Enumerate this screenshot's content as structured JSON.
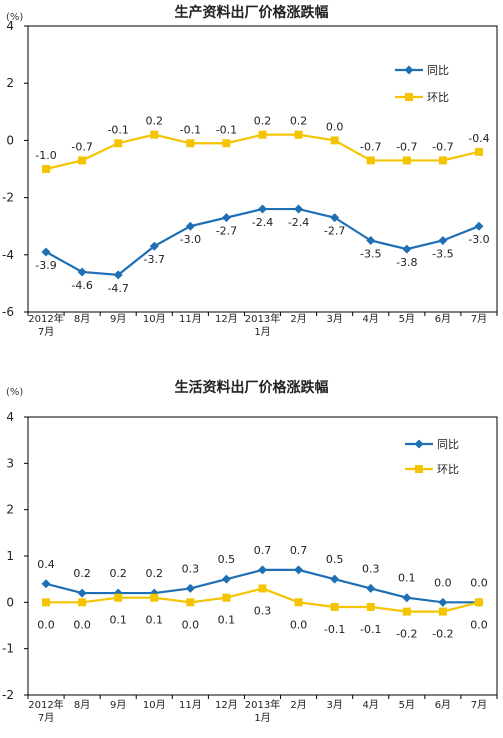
{
  "colors": {
    "yoy": "#1f6fb5",
    "mom": "#f5c400",
    "axis": "#000000"
  },
  "chart_data": [
    {
      "type": "line",
      "title": "生产资料出厂价格涨跌幅",
      "unit": "(%)",
      "categories": [
        [
          "2012年",
          "7月"
        ],
        [
          "8月"
        ],
        [
          "9月"
        ],
        [
          "10月"
        ],
        [
          "11月"
        ],
        [
          "12月"
        ],
        [
          "2013年",
          "1月"
        ],
        [
          "2月"
        ],
        [
          "3月"
        ],
        [
          "4月"
        ],
        [
          "5月"
        ],
        [
          "6月"
        ],
        [
          "7月"
        ]
      ],
      "ylim": [
        -6,
        4
      ],
      "yticks": [
        4,
        2,
        0,
        -2,
        -4,
        -6
      ],
      "ytick_labels": [
        "4",
        "2",
        "0",
        "-2",
        "-4",
        "-6"
      ],
      "legend_placement": "top-right",
      "series": [
        {
          "name": "同比",
          "key": "yoy",
          "values": [
            -3.9,
            -4.6,
            -4.7,
            -3.7,
            -3.0,
            -2.7,
            -2.4,
            -2.4,
            -2.7,
            -3.5,
            -3.8,
            -3.5,
            -3.0
          ],
          "labels": [
            "-3.9",
            "-4.6",
            "-4.7",
            "-3.7",
            "-3.0",
            "-2.7",
            "-2.4",
            "-2.4",
            "-2.7",
            "-3.5",
            "-3.8",
            "-3.5",
            "-3.0"
          ]
        },
        {
          "name": "环比",
          "key": "mom",
          "values": [
            -1.0,
            -0.7,
            -0.1,
            0.2,
            -0.1,
            -0.1,
            0.2,
            0.2,
            0.0,
            -0.7,
            -0.7,
            -0.7,
            -0.4
          ],
          "labels": [
            "-1.0",
            "-0.7",
            "-0.1",
            "0.2",
            "-0.1",
            "-0.1",
            "0.2",
            "0.2",
            "0.0",
            "-0.7",
            "-0.7",
            "-0.7",
            "-0.4"
          ]
        }
      ]
    },
    {
      "type": "line",
      "title": "生活资料出厂价格涨跌幅",
      "unit": "(%)",
      "categories": [
        [
          "2012年",
          "7月"
        ],
        [
          "8月"
        ],
        [
          "9月"
        ],
        [
          "10月"
        ],
        [
          "11月"
        ],
        [
          "12月"
        ],
        [
          "2013年",
          "1月"
        ],
        [
          "2月"
        ],
        [
          "3月"
        ],
        [
          "4月"
        ],
        [
          "5月"
        ],
        [
          "6月"
        ],
        [
          "7月"
        ]
      ],
      "ylim": [
        -2,
        4
      ],
      "yticks": [
        4,
        3,
        2,
        1,
        0,
        -1,
        -2
      ],
      "ytick_labels": [
        "4",
        "3",
        "2",
        "1",
        "0",
        "-1",
        "-2"
      ],
      "legend_placement": "top-right",
      "series": [
        {
          "name": "同比",
          "key": "yoy",
          "values": [
            0.4,
            0.2,
            0.2,
            0.2,
            0.3,
            0.5,
            0.7,
            0.7,
            0.5,
            0.3,
            0.1,
            0.0,
            0.0
          ],
          "labels": [
            "0.4",
            "0.2",
            "0.2",
            "0.2",
            "0.3",
            "0.5",
            "0.7",
            "0.7",
            "0.5",
            "0.3",
            "0.1",
            "0.0",
            "0.0"
          ]
        },
        {
          "name": "环比",
          "key": "mom",
          "values": [
            0.0,
            0.0,
            0.1,
            0.1,
            0.0,
            0.1,
            0.3,
            0.0,
            -0.1,
            -0.1,
            -0.2,
            -0.2,
            0.0
          ],
          "labels": [
            "0.0",
            "0.0",
            "0.1",
            "0.1",
            "0.0",
            "0.1",
            "0.3",
            "0.0",
            "-0.1",
            "-0.1",
            "-0.2",
            "-0.2",
            "0.0"
          ]
        }
      ]
    }
  ]
}
